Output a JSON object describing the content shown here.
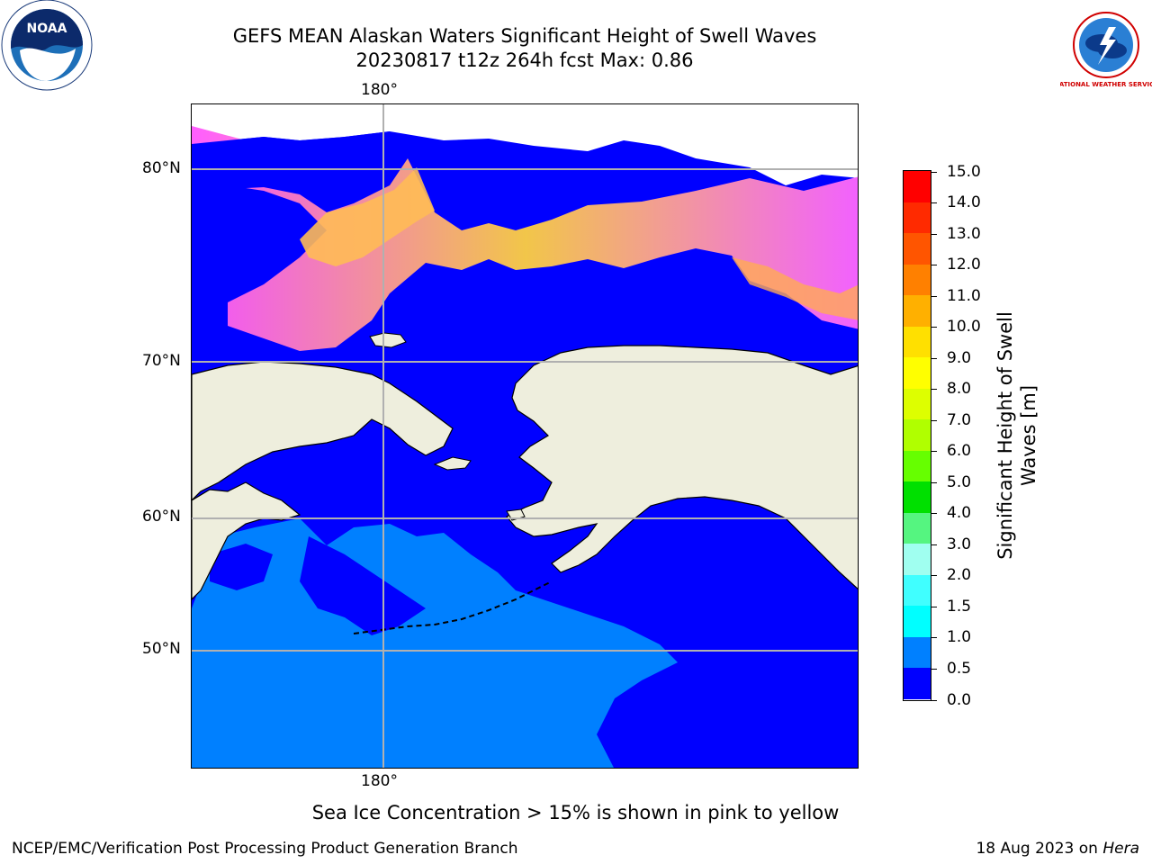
{
  "header": {
    "title_line1": "GEFS MEAN Alaskan Waters Significant Height of Swell Waves",
    "title_line2": "20230817 t12z 264h fcst   Max: 0.86",
    "left_logo_text": "NOAA",
    "right_logo_text": "NATIONAL WEATHER SERVICE"
  },
  "map": {
    "lon_label_top": "180°",
    "lon_label_bottom": "180°",
    "lat_labels": [
      "80°N",
      "70°N",
      "60°N",
      "50°N"
    ]
  },
  "colorbar": {
    "label_line1": "Significant Height of Swell",
    "label_line2": "Waves [m]",
    "ticks": [
      "15.0",
      "14.0",
      "13.0",
      "12.0",
      "11.0",
      "10.0",
      "9.0",
      "8.0",
      "7.0",
      "6.0",
      "5.0",
      "4.0",
      "3.0",
      "2.0",
      "1.5",
      "1.0",
      "0.5",
      "0.0"
    ],
    "colors": [
      "#ff0000",
      "#ff2a00",
      "#ff5500",
      "#ff8000",
      "#ffb000",
      "#ffe000",
      "#ffff00",
      "#ddff00",
      "#b0ff00",
      "#66ff00",
      "#00e000",
      "#55f580",
      "#a0fff0",
      "#40ffff",
      "#00ffff",
      "#0080ff",
      "#0000ff"
    ]
  },
  "footer": {
    "note": "Sea Ice Concentration > 15% is shown in pink to yellow",
    "credit": "NCEP/EMC/Verification Post Processing Product Generation Branch",
    "date": "18 Aug 2023 on ",
    "host": "Hera"
  }
}
